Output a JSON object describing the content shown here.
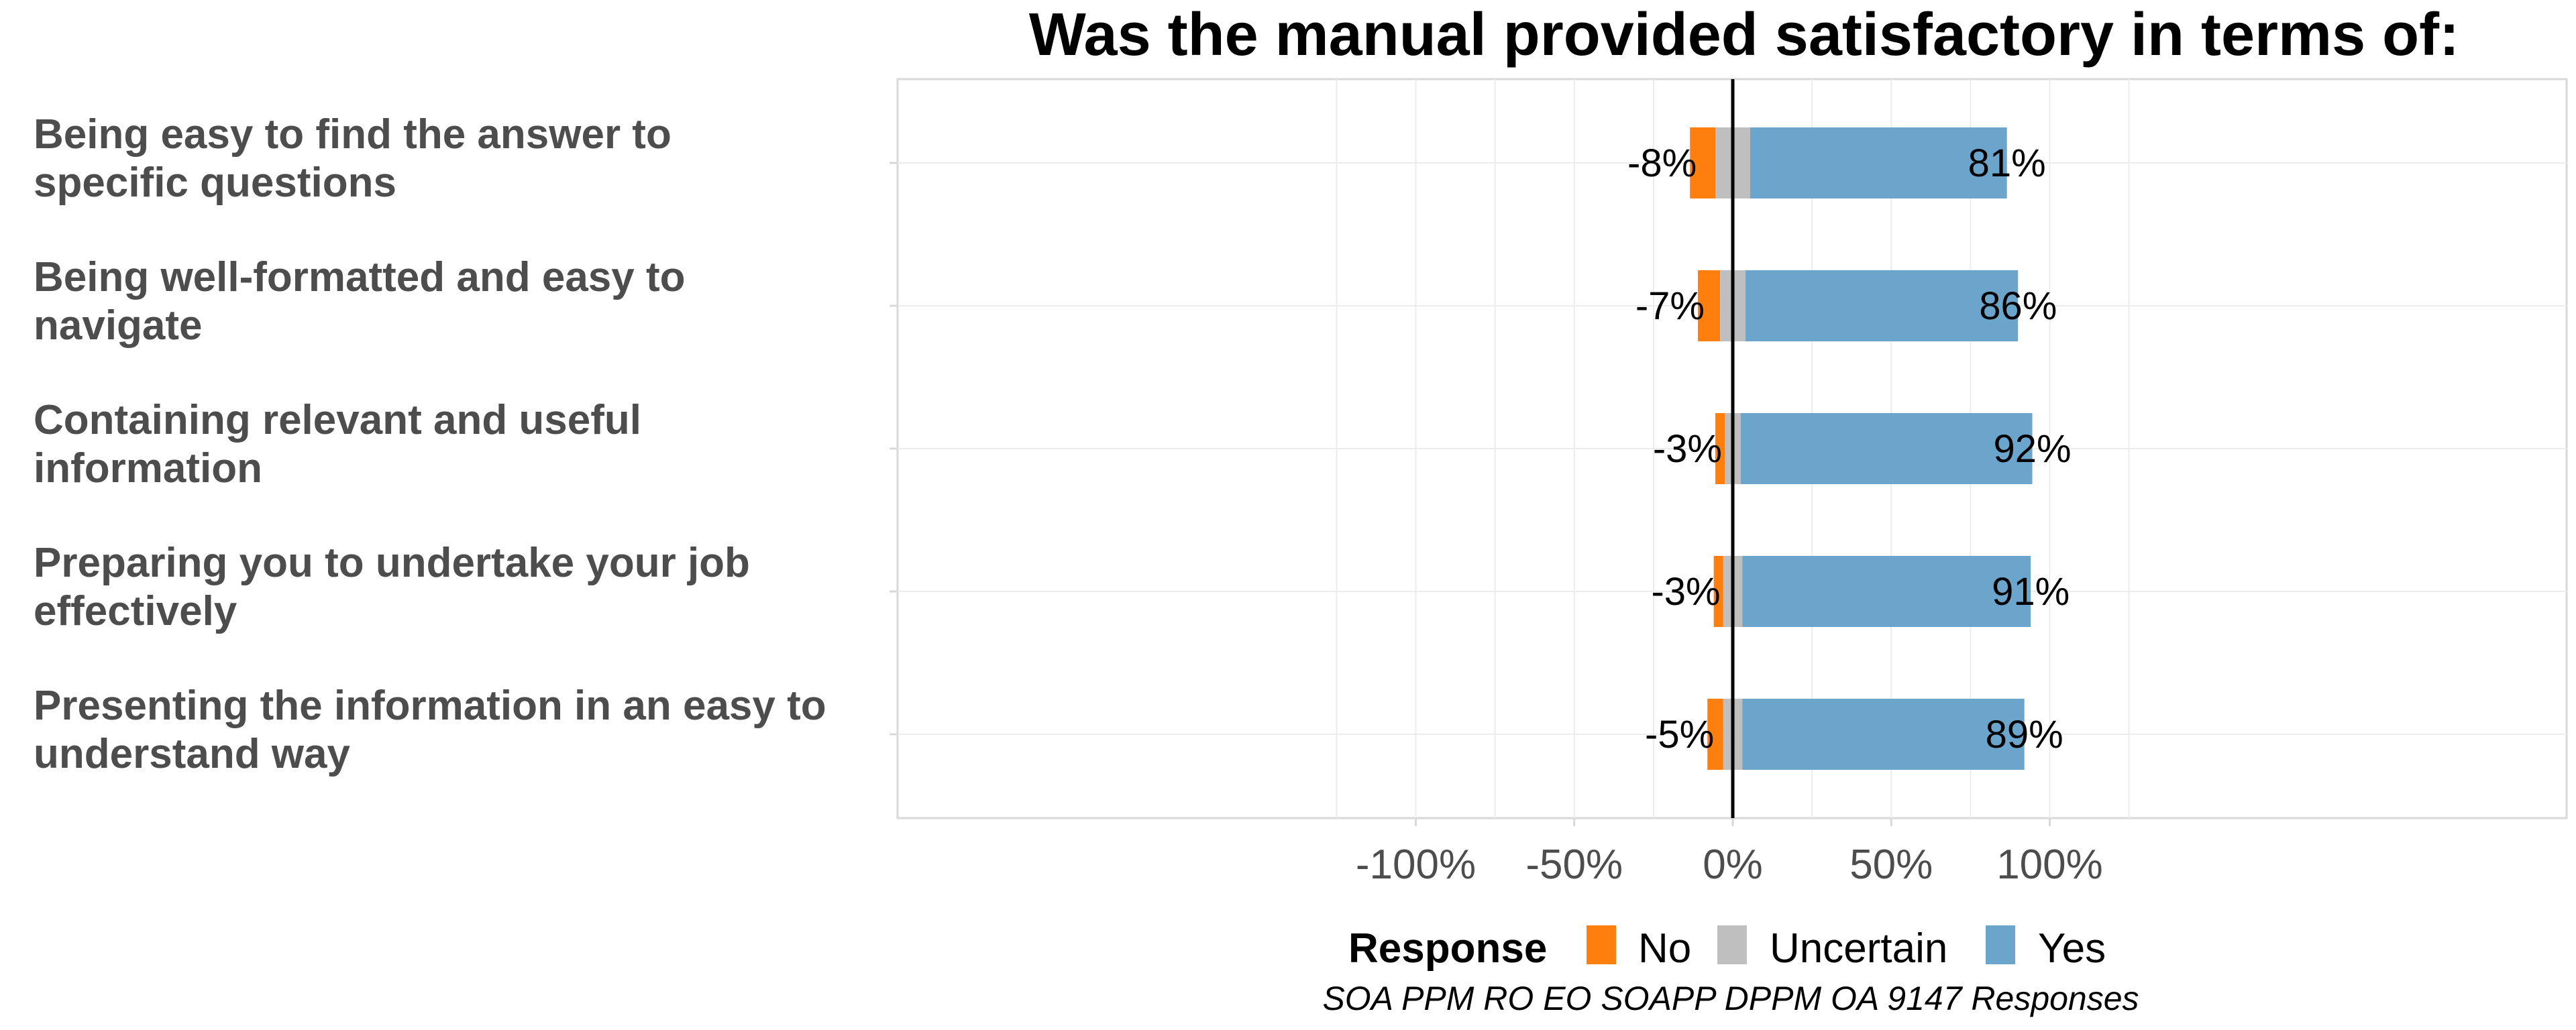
{
  "chart_data": {
    "type": "bar",
    "orientation": "horizontal",
    "stacked": "diverging",
    "title": "Was the manual provided satisfactory in terms of:",
    "categories": [
      "Being easy to find the answer to specific questions",
      "Being well-formatted and easy to navigate",
      "Containing relevant and useful information",
      "Preparing you to undertake your job effectively",
      "Presenting the information in an easy to understand way"
    ],
    "category_lines": [
      [
        "Being easy to find the answer to",
        "specific questions"
      ],
      [
        "Being well-formatted and easy to",
        "navigate"
      ],
      [
        "Containing relevant and useful",
        "information"
      ],
      [
        "Preparing you to undertake your job",
        "effectively"
      ],
      [
        "Presenting the information in an easy to",
        "understand way"
      ]
    ],
    "series": [
      {
        "name": "No",
        "values": [
          8,
          7,
          3,
          3,
          5
        ],
        "color": "#ff7f0e"
      },
      {
        "name": "Uncertain",
        "values": [
          11,
          8,
          5,
          6,
          6
        ],
        "color": "#bfbfbf"
      },
      {
        "name": "Yes",
        "values": [
          81,
          86,
          92,
          91,
          89
        ],
        "color": "#6ba5cc"
      }
    ],
    "data_labels": {
      "negative": [
        "-8%",
        "-7%",
        "-3%",
        "-3%",
        "-5%"
      ],
      "positive": [
        "81%",
        "86%",
        "92%",
        "91%",
        "89%"
      ]
    },
    "xlim": [
      -132,
      132
    ],
    "xticks": [
      -100,
      -50,
      0,
      50,
      100
    ],
    "xtick_labels": [
      "-100%",
      "-50%",
      "0%",
      "50%",
      "100%"
    ],
    "grid": true,
    "legend": {
      "position": "bottom",
      "title": "Response",
      "entries": [
        "No",
        "Uncertain",
        "Yes"
      ]
    },
    "caption": "SOA PPM RO EO SOAPP DPPM OA 9147 Responses"
  }
}
